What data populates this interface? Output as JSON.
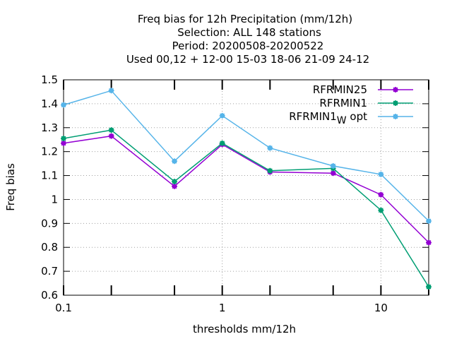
{
  "chart_data": {
    "type": "line",
    "title_lines": [
      "Freq bias  for 12h Precipitation (mm/12h)",
      "Selection: ALL    148 stations",
      "Period: 20200508-20200522",
      "Used  00,12  + 12-00 15-03 18-06 21-09 24-12"
    ],
    "xlabel": "thresholds mm/12h",
    "ylabel": "Freq bias",
    "x_scale": "log",
    "xlim": [
      0.1,
      20
    ],
    "ylim": [
      0.6,
      1.5
    ],
    "x_tick_values": [
      0.1,
      1,
      10
    ],
    "x_tick_labels": [
      "0.1",
      "1",
      "10"
    ],
    "x_minor_ticks": [
      0.2,
      0.5,
      2,
      5,
      20
    ],
    "y_tick_values": [
      0.6,
      0.7,
      0.8,
      0.9,
      1.0,
      1.1,
      1.2,
      1.3,
      1.4,
      1.5
    ],
    "y_tick_labels": [
      "0.6",
      "0.7",
      "0.8",
      "0.9",
      "1",
      "1.1",
      "1.2",
      "1.3",
      "1.4",
      "1.5"
    ],
    "grid": true,
    "legend_position": "top-right",
    "x": [
      0.1,
      0.2,
      0.5,
      1,
      2,
      5,
      10,
      20
    ],
    "series": [
      {
        "name": "RFRMIN25",
        "color": "#9400d3",
        "values": [
          1.235,
          1.265,
          1.055,
          1.23,
          1.115,
          1.11,
          1.02,
          0.82
        ]
      },
      {
        "name": "RFRMIN1",
        "color": "#009e73",
        "values": [
          1.255,
          1.29,
          1.075,
          1.235,
          1.12,
          1.13,
          0.955,
          0.635
        ]
      },
      {
        "name_main": "RFRMIN1",
        "name_sub": "W",
        "name_suffix": "opt",
        "color": "#56b4e9",
        "values": [
          1.395,
          1.455,
          1.16,
          1.35,
          1.215,
          1.14,
          1.105,
          0.91
        ]
      }
    ]
  }
}
